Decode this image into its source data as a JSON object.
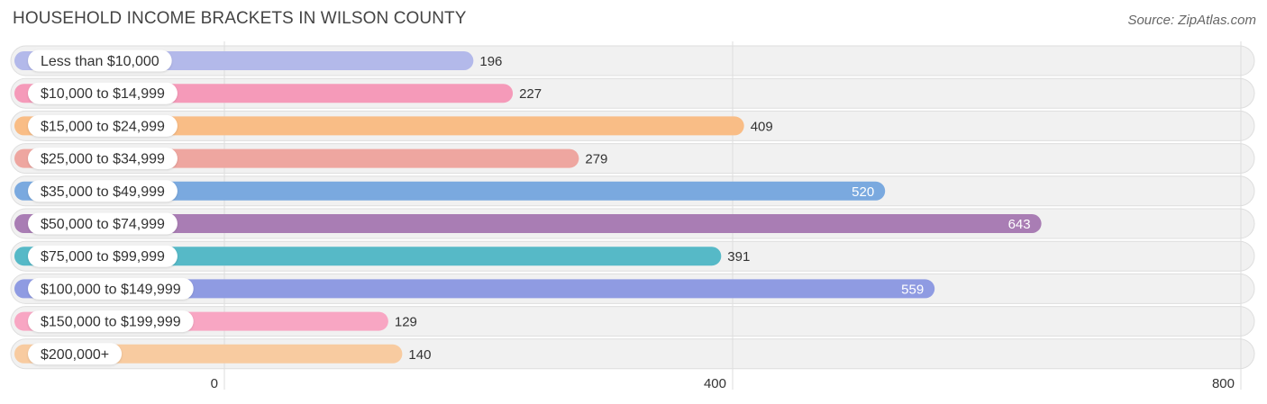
{
  "title": "HOUSEHOLD INCOME BRACKETS IN WILSON COUNTY",
  "source": "Source: ZipAtlas.com",
  "chart_data": {
    "type": "bar",
    "orientation": "horizontal",
    "title": "HOUSEHOLD INCOME BRACKETS IN WILSON COUNTY",
    "xlabel": "",
    "ylabel": "",
    "xlim": [
      0,
      800
    ],
    "ticks": [
      0,
      400,
      800
    ],
    "tick_labels": [
      "0",
      "400",
      "800"
    ],
    "grid": true,
    "legend": "none",
    "categories": [
      "Less than $10,000",
      "$10,000 to $14,999",
      "$15,000 to $24,999",
      "$25,000 to $34,999",
      "$35,000 to $49,999",
      "$50,000 to $74,999",
      "$75,000 to $99,999",
      "$100,000 to $149,999",
      "$150,000 to $199,999",
      "$200,000+"
    ],
    "values": [
      196,
      227,
      409,
      279,
      520,
      643,
      391,
      559,
      129,
      140
    ],
    "colors": [
      "#b3b9ea",
      "#f59ab9",
      "#f9bd86",
      "#eea6a0",
      "#7aa9df",
      "#a97db4",
      "#56b9c7",
      "#8f9be2",
      "#f8a6c3",
      "#f8cba0"
    ]
  }
}
